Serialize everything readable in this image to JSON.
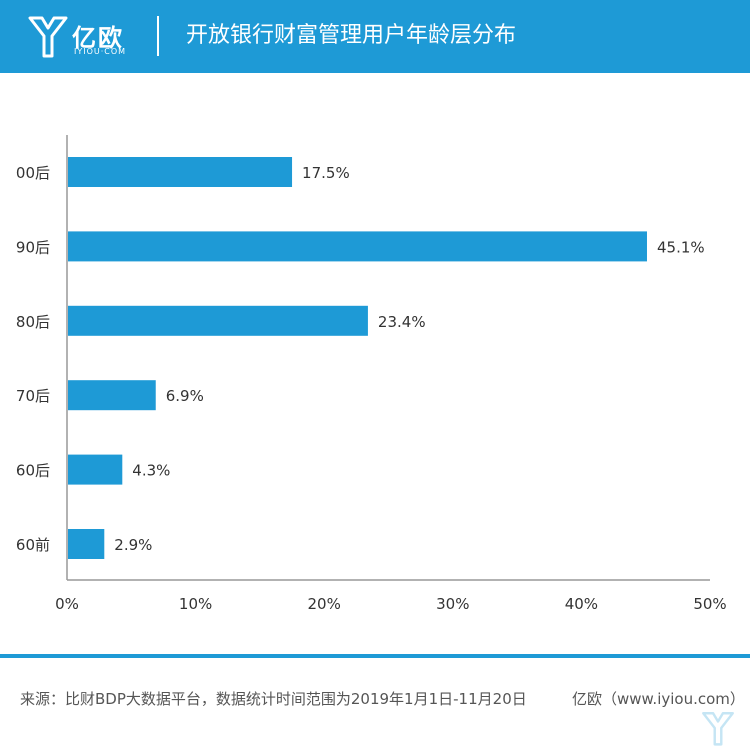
{
  "header": {
    "brand_name": "亿欧",
    "brand_domain": "IYIOU·COM",
    "title": "开放银行财富管理用户年龄层分布"
  },
  "colors": {
    "brand": "#1e9ad6",
    "bar": "#1e9ad6",
    "axis": "#999999",
    "text": "#333333"
  },
  "chart_data": {
    "type": "bar",
    "orientation": "horizontal",
    "title": "",
    "xlabel": "",
    "ylabel": "",
    "categories": [
      "00后",
      "90后",
      "80后",
      "70后",
      "60后",
      "60前"
    ],
    "values": [
      17.5,
      45.1,
      23.4,
      6.9,
      4.3,
      2.9
    ],
    "data_labels": [
      "17.5%",
      "45.1%",
      "23.4%",
      "6.9%",
      "4.3%",
      "2.9%"
    ],
    "xlim": [
      0,
      50
    ],
    "xticks": [
      0,
      10,
      20,
      30,
      40,
      50
    ],
    "xtick_labels": [
      "0%",
      "10%",
      "20%",
      "30%",
      "40%",
      "50%"
    ],
    "grid": false,
    "legend": "none"
  },
  "footer": {
    "source": "来源：比财BDP大数据平台，数据统计时间范围为2019年1月1日-11月20日",
    "credit": "亿欧（www.iyiou.com）"
  }
}
